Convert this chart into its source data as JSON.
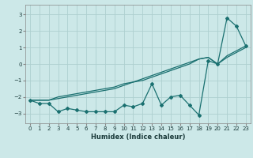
{
  "xlabel": "Humidex (Indice chaleur)",
  "background_color": "#cce8e8",
  "grid_color": "#aed0d0",
  "line_color": "#1a7070",
  "xlim": [
    -0.5,
    23.5
  ],
  "ylim": [
    -3.6,
    3.6
  ],
  "xticks": [
    0,
    1,
    2,
    3,
    4,
    5,
    6,
    7,
    8,
    9,
    10,
    11,
    12,
    13,
    14,
    15,
    16,
    17,
    18,
    19,
    20,
    21,
    22,
    23
  ],
  "yticks": [
    -3,
    -2,
    -1,
    0,
    1,
    2,
    3
  ],
  "x": [
    0,
    1,
    2,
    3,
    4,
    5,
    6,
    7,
    8,
    9,
    10,
    11,
    12,
    13,
    14,
    15,
    16,
    17,
    18,
    19,
    20,
    21,
    22,
    23
  ],
  "series1_y": [
    -2.2,
    -2.4,
    -2.4,
    -2.9,
    -2.7,
    -2.8,
    -2.9,
    -2.9,
    -2.9,
    -2.9,
    -2.5,
    -2.6,
    -2.4,
    -1.2,
    -2.5,
    -2.0,
    -1.9,
    -2.5,
    -3.1,
    0.2,
    0.0,
    2.8,
    2.3,
    1.1
  ],
  "series2_y": [
    -2.2,
    -2.2,
    -2.2,
    -2.0,
    -1.9,
    -1.8,
    -1.7,
    -1.6,
    -1.5,
    -1.4,
    -1.2,
    -1.1,
    -0.9,
    -0.7,
    -0.5,
    -0.3,
    -0.1,
    0.1,
    0.3,
    0.4,
    0.0,
    0.5,
    0.8,
    1.1
  ],
  "series3_y": [
    -2.2,
    -2.2,
    -2.2,
    -2.1,
    -2.0,
    -1.9,
    -1.8,
    -1.7,
    -1.6,
    -1.5,
    -1.3,
    -1.1,
    -1.0,
    -0.8,
    -0.6,
    -0.4,
    -0.2,
    0.0,
    0.3,
    0.4,
    0.0,
    0.4,
    0.7,
    1.0
  ],
  "xlabel_fontsize": 6,
  "tick_fontsize": 5
}
